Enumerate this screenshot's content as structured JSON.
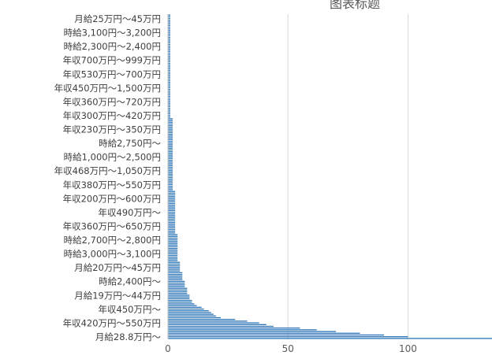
{
  "chart_data": {
    "type": "bar",
    "orientation": "horizontal",
    "title": "图表标题",
    "xlabel": "",
    "ylabel": "",
    "xlim": [
      0,
      135
    ],
    "x_ticks": [
      0,
      50,
      100
    ],
    "grid": true,
    "legend": "none",
    "bar_color": "#2E75B6",
    "visible_category_labels": [
      "月給25万円〜45万円",
      "時給3,100円〜3,200円",
      "時給2,300円〜2,400円",
      "年収700万円〜999万円",
      "年収530万円〜700万円",
      "年収450万円〜1,500万円",
      "年収360万円〜720万円",
      "年収300万円〜420万円",
      "年収230万円〜350万円",
      "時給2,750円〜",
      "時給1,000円〜2,500円",
      "年収468万円〜1,050万円",
      "年収380万円〜550万円",
      "年収200万円〜600万円",
      "年収490万円〜",
      "年収360万円〜650万円",
      "時給2,700円〜2,800円",
      "時給3,000円〜3,100円",
      "月給20万円〜45万円",
      "時給2,400円〜",
      "月給19万円〜44万円",
      "年収450万円〜",
      "年収420万円〜550万円",
      "月給28.8万円〜"
    ],
    "values": [
      1,
      1,
      1,
      1,
      1,
      1,
      1,
      1,
      1,
      1,
      1,
      1,
      1,
      1,
      1,
      1,
      1,
      1,
      1,
      1,
      1,
      1,
      1,
      1,
      1,
      1,
      1,
      1,
      1,
      1,
      1,
      1,
      1,
      1,
      1,
      1,
      1,
      1,
      1,
      1,
      1,
      1,
      1,
      1,
      1,
      1,
      1,
      1,
      1,
      1,
      1,
      1,
      1,
      1,
      1,
      1,
      1,
      1,
      1,
      1,
      2,
      2,
      2,
      2,
      2,
      2,
      2,
      2,
      2,
      2,
      2,
      2,
      2,
      2,
      2,
      2,
      2,
      2,
      2,
      2,
      2,
      2,
      2,
      2,
      2,
      2,
      2,
      2,
      2,
      2,
      2,
      2,
      2,
      2,
      2,
      2,
      2,
      2,
      2,
      2,
      2,
      2,
      3,
      3,
      3,
      3,
      3,
      3,
      3,
      3,
      3,
      3,
      3,
      3,
      3,
      3,
      3,
      3,
      3,
      3,
      3,
      3,
      3,
      3,
      3,
      3,
      3,
      4,
      4,
      4,
      4,
      4,
      4,
      4,
      4,
      4,
      4,
      4,
      4,
      4,
      4,
      4,
      4,
      5,
      5,
      5,
      5,
      5,
      5,
      6,
      6,
      6,
      6,
      6,
      7,
      7,
      7,
      7,
      8,
      8,
      8,
      8,
      9,
      9,
      9,
      10,
      10,
      11,
      12,
      14,
      15,
      17,
      18,
      19,
      20,
      22,
      28,
      33,
      38,
      41,
      44,
      55,
      62,
      70,
      80,
      90,
      100,
      135
    ]
  }
}
